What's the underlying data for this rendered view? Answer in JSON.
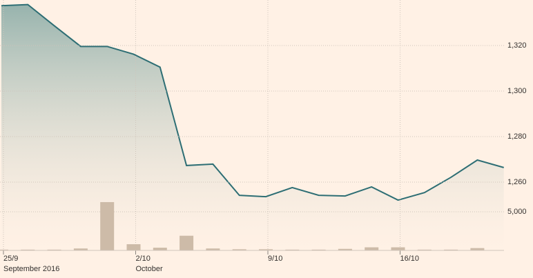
{
  "chart_data": {
    "type": "line",
    "categories": [
      null,
      null,
      null,
      null,
      null,
      null,
      null,
      null,
      null,
      null,
      null,
      null,
      null,
      null,
      null,
      null,
      null,
      null,
      null,
      null
    ],
    "series": [
      {
        "type": "area",
        "color": "#2d6e74",
        "values": [
          1337.5,
          1338,
          1328.7,
          1319.6,
          1319.6,
          1316.2,
          1310.5,
          1267.3,
          1267.9,
          1254.2,
          1253.6,
          1257.6,
          1254.2,
          1253.9,
          1257.9,
          1252.1,
          1255.4,
          1262.1,
          1269.7,
          1266.4
        ]
      },
      {
        "type": "bar",
        "axis": "y2",
        "color": "#cdbba8",
        "values": [
          100,
          100,
          100,
          250,
          6250,
          800,
          350,
          1900,
          250,
          150,
          150,
          100,
          100,
          200,
          400,
          400,
          100,
          100,
          300,
          0
        ]
      }
    ],
    "ylim": [
      1230,
      1340
    ],
    "yticks": [
      {
        "value": 1260,
        "label": "1,260"
      },
      {
        "value": 1280,
        "label": "1,280"
      },
      {
        "value": 1300,
        "label": "1,300"
      },
      {
        "value": 1320,
        "label": "1,320"
      }
    ],
    "y2lim": [
      0,
      32400
    ],
    "y2ticks": [
      {
        "value": 5000,
        "label": "5,000"
      }
    ],
    "xticks": [
      {
        "value": 0,
        "label": "25/9"
      },
      {
        "value": 5,
        "label": "2/10"
      },
      {
        "value": 10,
        "label": "9/10"
      },
      {
        "value": 15,
        "label": "16/10"
      }
    ],
    "x_period_labels": [
      {
        "value": 0,
        "label": "September 2016"
      },
      {
        "value": 5,
        "label": "October"
      }
    ],
    "grid": true
  }
}
